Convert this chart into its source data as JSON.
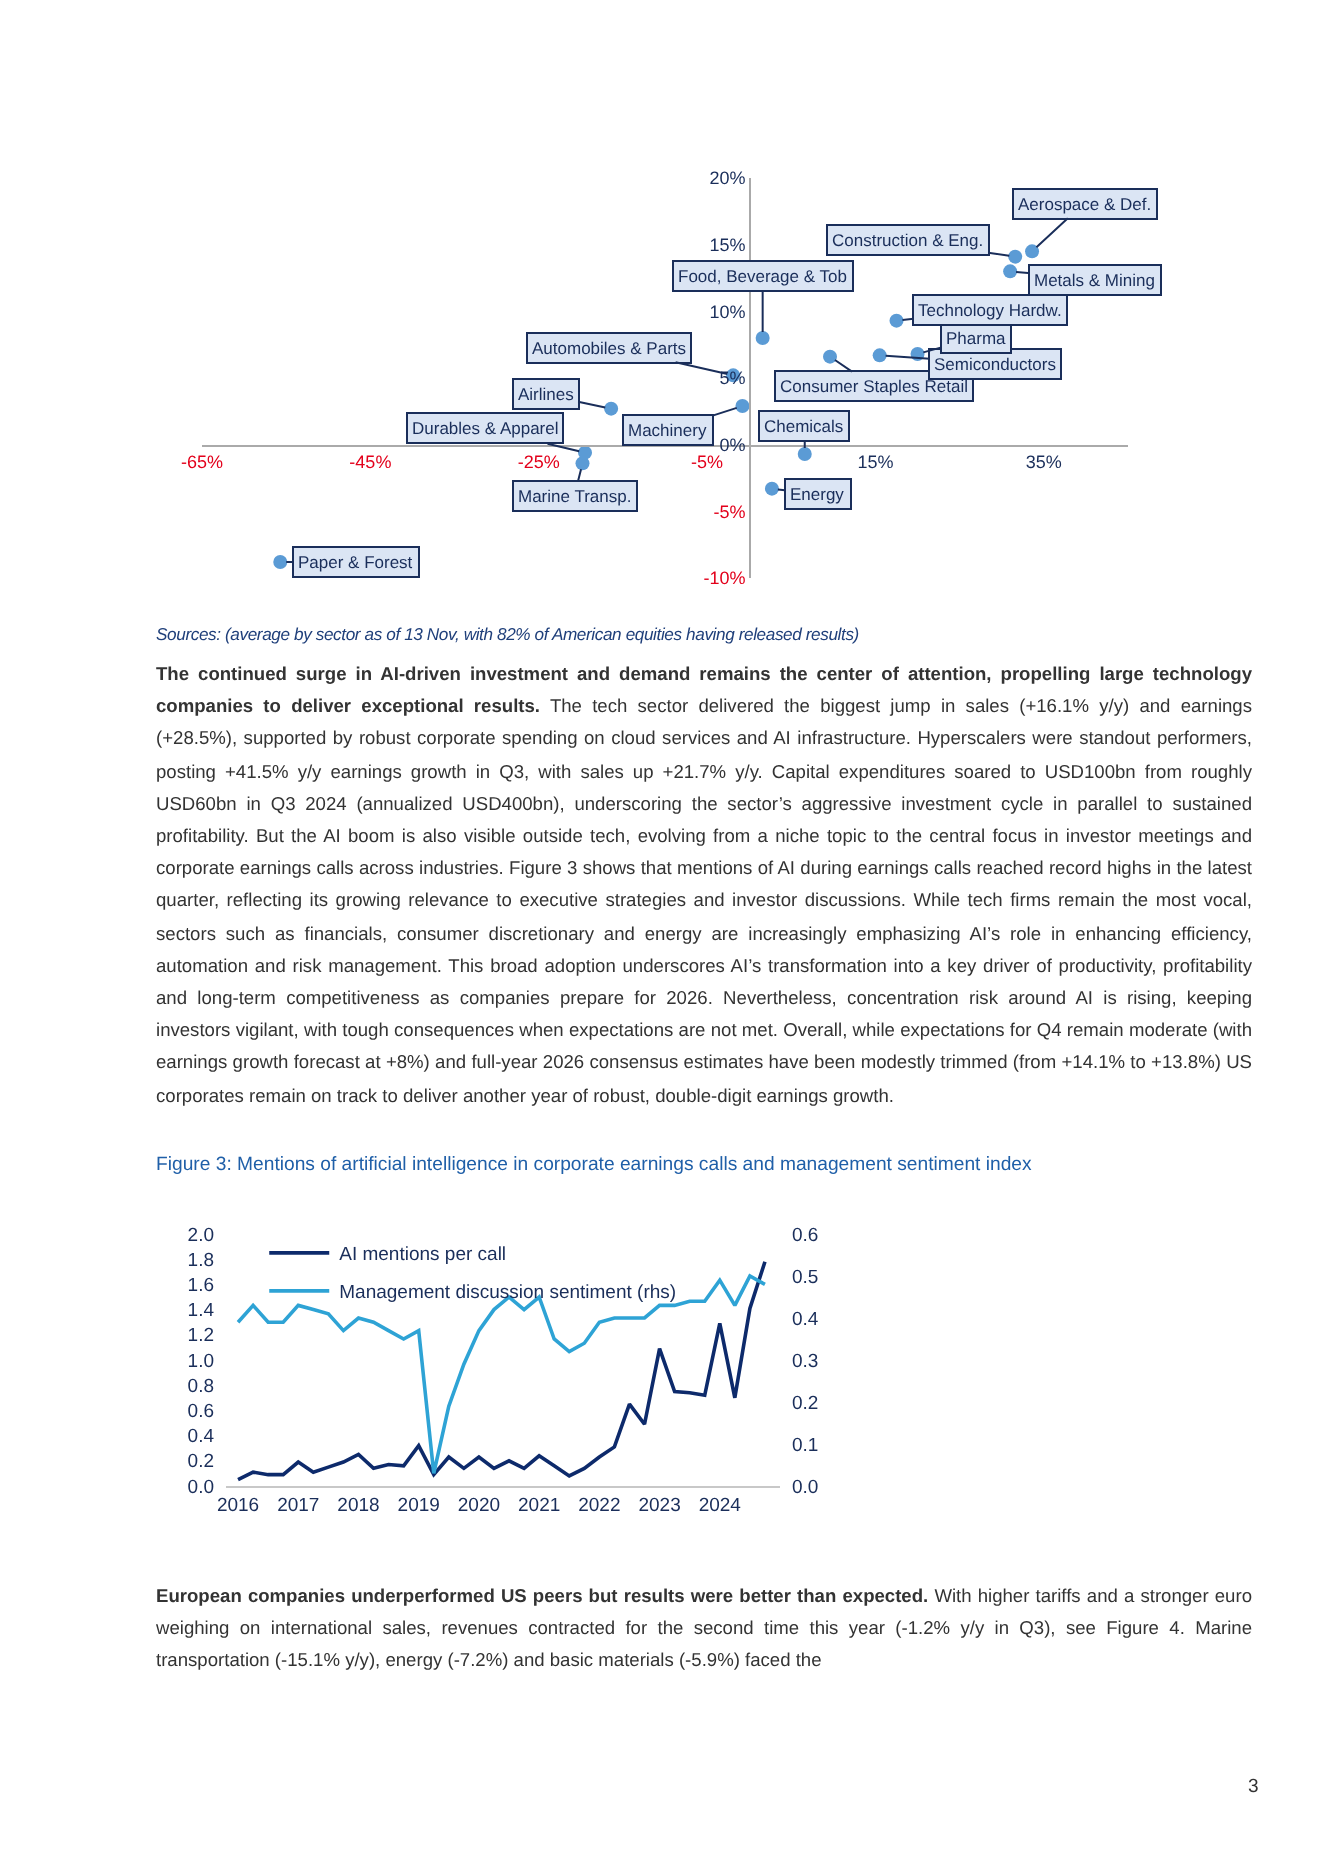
{
  "chart_data": [
    {
      "type": "scatter",
      "x": [
        -55.7,
        -19.8,
        -19.5,
        -16.4,
        -1.9,
        -0.8,
        1.6,
        6.6,
        2.7,
        9.6,
        15.5,
        20,
        17.5,
        31.6,
        31,
        33.6
      ],
      "series": [
        {
          "color": "#5b9bd5",
          "values": [
            -8.8,
            -1.4,
            -0.6,
            2.7,
            5.2,
            2.9,
            8.0,
            -0.7,
            -3.3,
            6.6,
            6.7,
            6.8,
            9.3,
            14.1,
            13.0,
            14.5
          ]
        }
      ],
      "xlim": [
        -65,
        45
      ],
      "ylim": [
        -10,
        20
      ],
      "xticks": [
        {
          "value": -65,
          "label": "-65%"
        },
        {
          "value": -45,
          "label": "-45%"
        },
        {
          "value": -25,
          "label": "-25%"
        },
        {
          "value": -5,
          "label": "-5%"
        },
        {
          "value": 15,
          "label": "15%"
        },
        {
          "value": 35,
          "label": "35%"
        }
      ],
      "yticks": [
        {
          "value": -10,
          "label": "-10%"
        },
        {
          "value": -5,
          "label": "-5%"
        },
        {
          "value": 0,
          "label": "0%"
        },
        {
          "value": 5,
          "label": "5%"
        },
        {
          "value": 10,
          "label": "10%"
        },
        {
          "value": 15,
          "label": "15%"
        },
        {
          "value": 20,
          "label": "20%"
        }
      ],
      "marker": "circle",
      "annotations": [
        {
          "text": "Paper & Forest",
          "x": -55.7,
          "y": -8.8
        },
        {
          "text": "Marine Transp.",
          "x": -19.8,
          "y": -1.4
        },
        {
          "text": "Durables & Apparel",
          "x": -19.5,
          "y": -0.6
        },
        {
          "text": "Airlines",
          "x": -16.4,
          "y": 2.7
        },
        {
          "text": "Automobiles & Parts",
          "x": -1.9,
          "y": 5.2
        },
        {
          "text": "Machinery",
          "x": -0.8,
          "y": 2.9
        },
        {
          "text": "Food, Beverage & Tob",
          "x": 1.6,
          "y": 8.0
        },
        {
          "text": "Chemicals",
          "x": 6.6,
          "y": -0.7
        },
        {
          "text": "Energy",
          "x": 2.7,
          "y": -3.3
        },
        {
          "text": "Consumer Staples Retail",
          "x": 9.6,
          "y": 6.6
        },
        {
          "text": "Semiconductors",
          "x": 15.5,
          "y": 6.7
        },
        {
          "text": "Pharma",
          "x": 20,
          "y": 6.8
        },
        {
          "text": "Technology Hardw.",
          "x": 17.5,
          "y": 9.3
        },
        {
          "text": "Construction & Eng.",
          "x": 31.6,
          "y": 14.1
        },
        {
          "text": "Metals & Mining",
          "x": 31,
          "y": 13.0
        },
        {
          "text": "Aerospace & Def.",
          "x": 33.6,
          "y": 14.5
        },
        "Sources: (average by sector as of 13 Nov, with 82% of American equities having released results)",
        "The continued surge in AI-driven investment and demand remains the center of attention, propelling large technology companies to deliver exceptional results.",
        "The tech sector delivered the biggest jump in sales (+16.1% y/y) and earnings (+28.5%), supported by robust corporate spending on cloud services and AI infrastructure. Hyperscalers were standout performers, posting +41.5% y/y earnings growth in Q3, with sales up +21.7% y/y. Capital expenditures soared to USD100bn from roughly USD60bn in Q3 2024 (annualized USD400bn), underscoring the sector’s aggressive investment cycle in parallel to sustained profitability. But the AI boom is also visible outside tech, evolving from a niche topic to the central focus in investor meetings and corporate earnings calls across industries. Figure 3 shows that mentions of AI during earnings calls reached record highs in the latest quarter, reflecting its growing relevance to executive strategies and investor discussions. While tech firms remain the most vocal, sectors such as financials, consumer discretionary and energy are increasingly emphasizing AI’s role in enhancing efficiency, automation and risk management. This broad adoption underscores AI’s transformation into a key driver of productivity, profitability and long-term competitiveness as companies prepare for 2026. Nevertheless, concentration risk around AI is rising, keeping investors vigilant, with tough consequences when expectations are not met. Overall, while expectations for Q4 remain moderate (with earnings growth forecast at +8%) and full-year 2026 consensus estimates have been modestly trimmed (from +14.1% to +13.8%) US corporates remain on track to deliver another year of robust, double-digit earnings growth."
      ]
    },
    {
      "type": "line",
      "title": "Figure 3: Mentions of artificial intelligence in corporate earnings calls and management sentiment index",
      "x": [
        2016,
        2016.25,
        2016.5,
        2016.75,
        2017,
        2017.25,
        2017.5,
        2017.75,
        2018,
        2018.25,
        2018.5,
        2018.75,
        2019,
        2019.25,
        2019.5,
        2019.75,
        2020,
        2020.25,
        2020.5,
        2020.75,
        2021,
        2021.25,
        2021.5,
        2021.75,
        2022,
        2022.25,
        2022.5,
        2022.75,
        2023,
        2023.25,
        2023.5,
        2023.75,
        2024,
        2024.25,
        2024.5,
        2024.75
      ],
      "series": [
        {
          "name": "AI mentions per call",
          "color": "#0d2a6b",
          "values": [
            0.05,
            0.11,
            0.09,
            0.09,
            0.19,
            0.11,
            0.15,
            0.19,
            0.25,
            0.14,
            0.17,
            0.16,
            0.32,
            0.09,
            0.23,
            0.14,
            0.23,
            0.14,
            0.2,
            0.14,
            0.24,
            0.16,
            0.08,
            0.14,
            0.23,
            0.31,
            0.65,
            0.49,
            1.09,
            0.75,
            0.74,
            0.72,
            1.29,
            0.7,
            1.41,
            1.78
          ]
        },
        {
          "name": "Management discussion sentiment (rhs)",
          "color": "#2ea3d5",
          "axis": "y2",
          "values": [
            0.39,
            0.43,
            0.39,
            0.39,
            0.43,
            0.42,
            0.41,
            0.37,
            0.4,
            0.39,
            0.37,
            0.35,
            0.37,
            0.03,
            0.19,
            0.29,
            0.37,
            0.42,
            0.45,
            0.42,
            0.45,
            0.35,
            0.32,
            0.34,
            0.39,
            0.4,
            0.4,
            0.4,
            0.43,
            0.43,
            0.44,
            0.44,
            0.49,
            0.43,
            0.5,
            0.48
          ]
        }
      ],
      "xlim": [
        2015.8,
        2025
      ],
      "xticks": [
        2016,
        2017,
        2018,
        2019,
        2020,
        2021,
        2022,
        2023,
        2024
      ],
      "ylim": [
        0,
        2
      ],
      "yticks": [
        {
          "value": 0,
          "label": "0.0"
        },
        0.2,
        0.4,
        0.6,
        0.8,
        {
          "value": 1,
          "label": "1.0"
        },
        1.2,
        1.4,
        1.6,
        1.8,
        {
          "value": 2,
          "label": "2.0"
        }
      ],
      "y2lim": [
        0,
        0.6
      ],
      "y2ticks": [
        {
          "value": 0,
          "label": "0.0"
        },
        0.1,
        0.2,
        0.3,
        0.4,
        0.5,
        0.6
      ],
      "legend": "top left",
      "annotations": [
        "European companies underperformed US peers but results were better than expected.",
        "With higher tariffs and a stronger euro weighing on international sales, revenues contracted for the second time this year (-1.2% y/y in Q3), see Figure 4. Marine transportation (-15.1% y/y), energy (-7.2%) and basic materials (-5.9%) faced the",
        "3"
      ]
    }
  ]
}
